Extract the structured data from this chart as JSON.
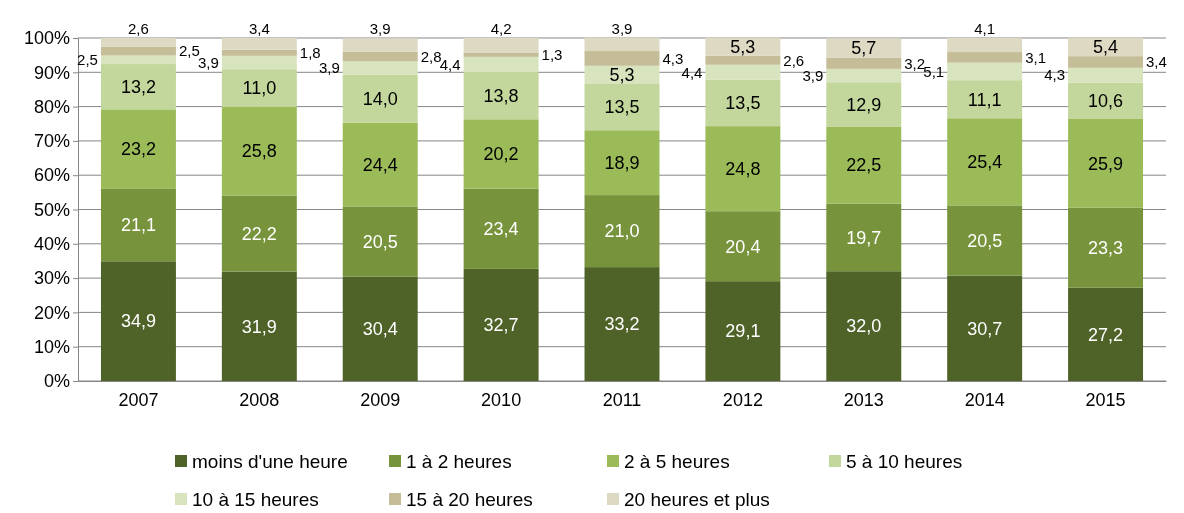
{
  "chart_data": {
    "type": "bar",
    "stacked": true,
    "categories": [
      "2007",
      "2008",
      "2009",
      "2010",
      "2011",
      "2012",
      "2013",
      "2014",
      "2015"
    ],
    "ylim": [
      0,
      100
    ],
    "yticks": [
      {
        "value": 0,
        "label": "0%"
      },
      {
        "value": 10,
        "label": "10%"
      },
      {
        "value": 20,
        "label": "20%"
      },
      {
        "value": 30,
        "label": "30%"
      },
      {
        "value": 40,
        "label": "40%"
      },
      {
        "value": 50,
        "label": "50%"
      },
      {
        "value": 60,
        "label": "60%"
      },
      {
        "value": 70,
        "label": "70%"
      },
      {
        "value": 80,
        "label": "80%"
      },
      {
        "value": 90,
        "label": "90%"
      },
      {
        "value": 100,
        "label": "100%"
      }
    ],
    "grid": "y",
    "legend": "bottom",
    "series": [
      {
        "name": "moins d'une heure",
        "color": "#4f6228",
        "values": [
          34.9,
          31.9,
          30.4,
          32.7,
          33.2,
          29.1,
          32.0,
          30.7,
          27.2
        ],
        "value_labels": [
          "34,9",
          "31,9",
          "30,4",
          "32,7",
          "33,2",
          "29,1",
          "32,0",
          "30,7",
          "27,2"
        ]
      },
      {
        "name": "1 à 2 heures",
        "color": "#77933c",
        "values": [
          21.1,
          22.2,
          20.5,
          23.4,
          21.0,
          20.4,
          19.7,
          20.5,
          23.3
        ],
        "value_labels": [
          "21,1",
          "22,2",
          "20,5",
          "23,4",
          "21,0",
          "20,4",
          "19,7",
          "20,5",
          "23,3"
        ]
      },
      {
        "name": "2 à 5 heures",
        "color": "#9bbb59",
        "values": [
          23.2,
          25.8,
          24.4,
          20.2,
          18.9,
          24.8,
          22.5,
          25.4,
          25.9
        ],
        "value_labels": [
          "23,2",
          "25,8",
          "24,4",
          "20,2",
          "18,9",
          "24,8",
          "22,5",
          "25,4",
          "25,9"
        ]
      },
      {
        "name": "5 à 10 heures",
        "color": "#c3d69b",
        "values": [
          13.2,
          11.0,
          14.0,
          13.8,
          13.5,
          13.5,
          12.9,
          11.1,
          10.6
        ],
        "value_labels": [
          "13,2",
          "11,0",
          "14,0",
          "13,8",
          "13,5",
          "13,5",
          "12,9",
          "11,1",
          "10,6"
        ]
      },
      {
        "name": "10 à 15 heures",
        "color": "#d7e4bd",
        "values": [
          2.5,
          3.9,
          3.9,
          4.4,
          5.3,
          4.4,
          3.9,
          5.1,
          4.3
        ],
        "value_labels": [
          "2,5",
          "3,9",
          "3,9",
          "4,4",
          "5,3",
          "4,4",
          "3,9",
          "5,1",
          "4,3"
        ]
      },
      {
        "name": "15 à 20 heures",
        "color": "#c4bd97",
        "values": [
          2.5,
          1.8,
          2.8,
          1.3,
          4.3,
          2.6,
          3.2,
          3.1,
          3.4
        ],
        "value_labels": [
          "2,5",
          "1,8",
          "2,8",
          "1,3",
          "4,3",
          "2,6",
          "3,2",
          "3,1",
          "3,4"
        ]
      },
      {
        "name": "20 heures et plus",
        "color": "#ddd9c3",
        "values": [
          2.6,
          3.4,
          3.9,
          4.2,
          3.9,
          5.3,
          5.7,
          4.1,
          5.4
        ],
        "value_labels": [
          "2,6",
          "3,4",
          "3,9",
          "4,2",
          "3,9",
          "5,3",
          "5,7",
          "4,1",
          "5,4"
        ]
      }
    ]
  }
}
